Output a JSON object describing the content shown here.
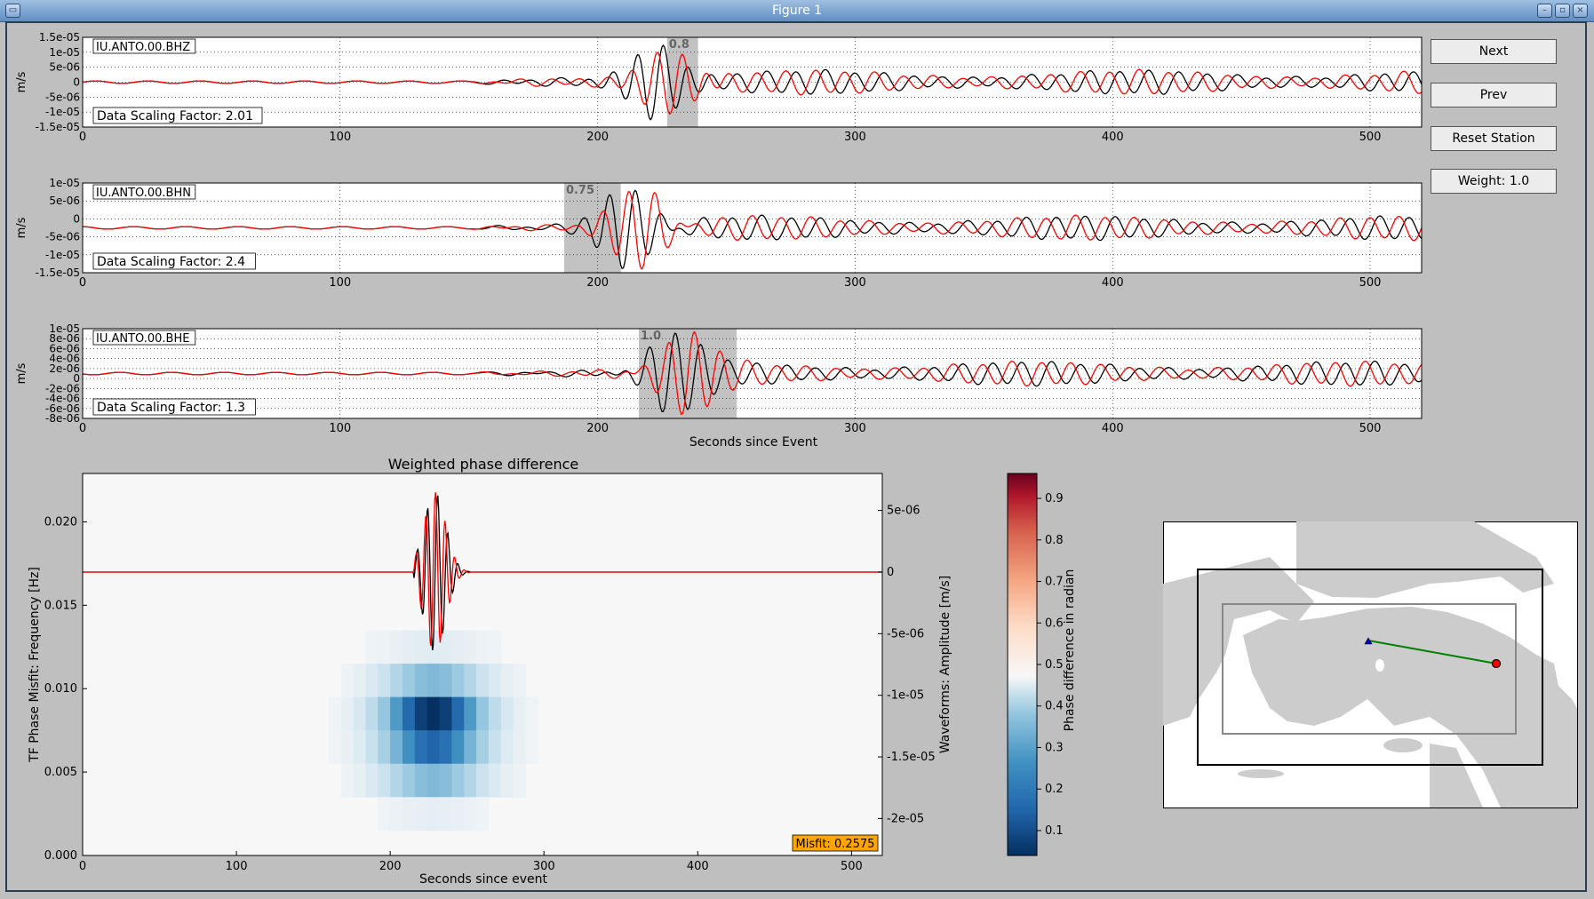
{
  "window": {
    "title": "Figure 1"
  },
  "buttons": {
    "next": "Next",
    "prev": "Prev",
    "reset": "Reset Station",
    "weight": "Weight: 1.0"
  },
  "traces": [
    {
      "station": "IU.ANTO.00.BHZ",
      "scaling": "Data Scaling Factor: 2.01",
      "ylabel": "m/s",
      "yticks": [
        "1.5e-05",
        "1e-05",
        "5e-06",
        "0",
        "-5e-06",
        "-1e-05",
        "-1.5e-05"
      ],
      "ymax": 1.5e-05,
      "window": [
        227,
        239
      ],
      "window_label": "0.8"
    },
    {
      "station": "IU.ANTO.00.BHN",
      "scaling": "Data Scaling Factor: 2.4",
      "ylabel": "m/s",
      "yticks": [
        "1e-05",
        "5e-06",
        "0",
        "-5e-06",
        "-1e-05",
        "-1.5e-05"
      ],
      "ymax": 1e-05,
      "window": [
        187,
        209
      ],
      "window_label": "0.75"
    },
    {
      "station": "IU.ANTO.00.BHE",
      "scaling": "Data Scaling Factor: 1.3",
      "ylabel": "m/s",
      "yticks": [
        "1e-05",
        "8e-06",
        "6e-06",
        "4e-06",
        "2e-06",
        "0",
        "-2e-06",
        "-4e-06",
        "-6e-06",
        "-8e-06"
      ],
      "ymax": 1e-05,
      "window": [
        216,
        254
      ],
      "window_label": "1.0"
    }
  ],
  "trace_xticks": [
    "0",
    "100",
    "200",
    "300",
    "400",
    "500"
  ],
  "trace_xlabel": "Seconds since Event",
  "tf_panel": {
    "title": "Weighted phase difference",
    "ylabel": "TF Phase Misfit: Frequency [Hz]",
    "y2label": "Waveforms: Amplitude [m/s]",
    "xlabel": "Seconds since event",
    "xticks": [
      "0",
      "100",
      "200",
      "300",
      "400",
      "500"
    ],
    "yticks": [
      "0.000",
      "0.005",
      "0.010",
      "0.015",
      "0.020"
    ],
    "y2ticks": [
      "5e-06",
      "0",
      "-5e-06",
      "-1e-05",
      "-1.5e-05",
      "-2e-05"
    ],
    "misfit": "Misfit: 0.2575"
  },
  "colorbar": {
    "label": "Phase difference in radian",
    "ticks": [
      "0.9",
      "0.8",
      "0.7",
      "0.6",
      "0.5",
      "0.4",
      "0.3",
      "0.2",
      "0.1"
    ]
  },
  "colors": {
    "data": "#000000",
    "synthetic": "#ff0000",
    "window": "#999999",
    "path": "#008000",
    "misfit_bg": "#ffa500"
  }
}
